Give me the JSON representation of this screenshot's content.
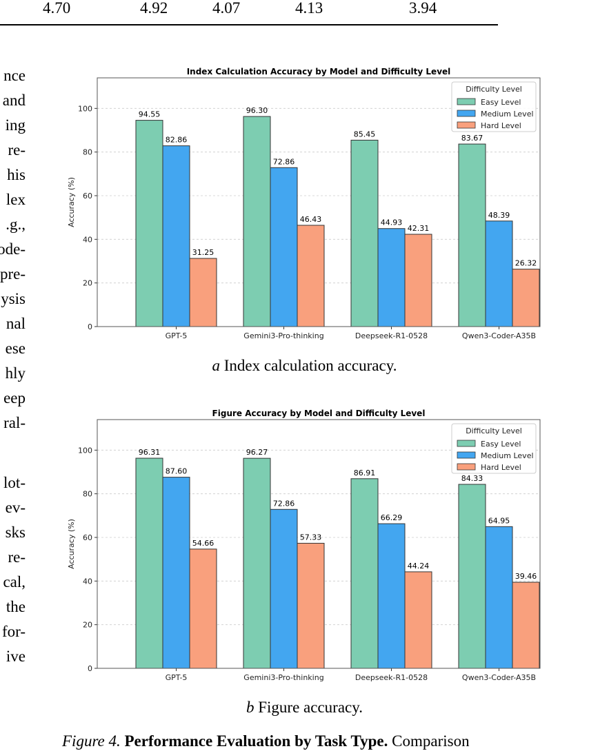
{
  "table_last_row": [
    "4.70",
    "4.92",
    "4.07",
    "4.13",
    "3.94"
  ],
  "left_column_fragments": [
    "nce",
    "and",
    "ing",
    "re-",
    "his",
    "lex",
    ".g.,",
    "ode-",
    "pre-",
    "ysis",
    "nal",
    "ese",
    "hly",
    "eep",
    "ral-",
    "",
    "lot-",
    "ev-",
    "sks",
    "re-",
    "cal,",
    "the",
    "for-",
    "ive"
  ],
  "charts": [
    {
      "id": "a",
      "chart_data": {
        "type": "bar",
        "title": "Index Calculation Accuracy by Model and Difficulty Level",
        "xlabel": "",
        "ylabel": "Accuracy (%)",
        "categories": [
          "GPT-5",
          "Gemini3-Pro-thinking",
          "Deepseek-R1-0528",
          "Qwen3-Coder-A35B"
        ],
        "series": [
          {
            "name": "Easy Level",
            "values": [
              94.55,
              96.3,
              85.45,
              83.67
            ],
            "labels": [
              "94.55",
              "96.30",
              "85.45",
              "83.67"
            ],
            "color": "#7dcdb1"
          },
          {
            "name": "Medium Level",
            "values": [
              82.86,
              72.86,
              44.93,
              48.39
            ],
            "labels": [
              "82.86",
              "72.86",
              "44.93",
              "48.39"
            ],
            "color": "#43a6f0"
          },
          {
            "name": "Hard Level",
            "values": [
              31.25,
              46.43,
              42.31,
              26.32
            ],
            "labels": [
              "31.25",
              "46.43",
              "42.31",
              "26.32"
            ],
            "color": "#f9a07d"
          }
        ],
        "ylim": [
          0,
          114
        ],
        "yticks": [
          0,
          20,
          40,
          60,
          80,
          100
        ],
        "ytick_labels": [
          "0",
          "20",
          "40",
          "60",
          "80",
          "100"
        ],
        "grid": "horizontal dashed",
        "legend": {
          "title": "Difficulty Level",
          "placement": "top-right"
        }
      },
      "caption_letter": "a",
      "caption_text": " Index calculation accuracy."
    },
    {
      "id": "b",
      "chart_data": {
        "type": "bar",
        "title": "Figure Accuracy by Model and Difficulty Level",
        "xlabel": "",
        "ylabel": "Accuracy (%)",
        "categories": [
          "GPT-5",
          "Gemini3-Pro-thinking",
          "Deepseek-R1-0528",
          "Qwen3-Coder-A35B"
        ],
        "series": [
          {
            "name": "Easy Level",
            "values": [
              96.31,
              96.27,
              86.91,
              84.33
            ],
            "labels": [
              "96.31",
              "96.27",
              "86.91",
              "84.33"
            ],
            "color": "#7dcdb1"
          },
          {
            "name": "Medium Level",
            "values": [
              87.6,
              72.86,
              66.29,
              64.95
            ],
            "labels": [
              "87.60",
              "72.86",
              "66.29",
              "64.95"
            ],
            "color": "#43a6f0"
          },
          {
            "name": "Hard Level",
            "values": [
              54.66,
              57.33,
              44.24,
              39.46
            ],
            "labels": [
              "54.66",
              "57.33",
              "44.24",
              "39.46"
            ],
            "color": "#f9a07d"
          }
        ],
        "ylim": [
          0,
          114
        ],
        "yticks": [
          0,
          20,
          40,
          60,
          80,
          100
        ],
        "ytick_labels": [
          "0",
          "20",
          "40",
          "60",
          "80",
          "100"
        ],
        "grid": "horizontal dashed",
        "legend": {
          "title": "Difficulty Level",
          "placement": "top-right"
        }
      },
      "caption_letter": "b",
      "caption_text": " Figure accuracy."
    }
  ],
  "figure_caption": {
    "label": "Figure 4.",
    "bold": "Performance Evaluation by Task Type.",
    "rest": "Comparison"
  }
}
